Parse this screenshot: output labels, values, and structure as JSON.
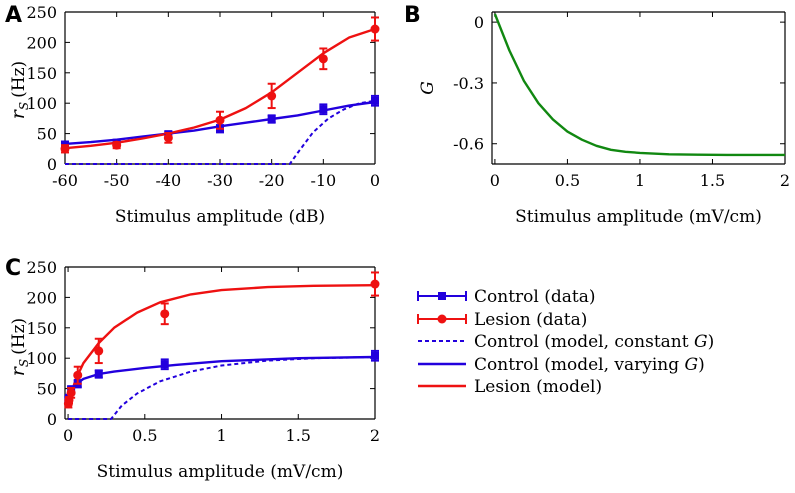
{
  "panel_labels": {
    "a": "A",
    "b": "B",
    "c": "C"
  },
  "colors": {
    "control": "#2200dd",
    "lesion": "#ee1111",
    "gain": "#118811"
  },
  "chart_data": [
    {
      "type": "line",
      "panel": "A",
      "xlabel": "Stimulus amplitude (dB)",
      "ylabel_main": "r",
      "ylabel_sub": "S",
      "ylabel_unit": "(Hz)",
      "xlim": [
        -60,
        0
      ],
      "ylim": [
        0,
        250
      ],
      "xticks": [
        -60,
        -50,
        -40,
        -30,
        -20,
        -10,
        0
      ],
      "xtick_labels": [
        "-60",
        "-50",
        "-40",
        "-30",
        "-20",
        "-10",
        "0"
      ],
      "yticks": [
        0,
        50,
        100,
        150,
        200,
        250
      ],
      "ytick_labels": [
        "0",
        "50",
        "100",
        "150",
        "200",
        "250"
      ],
      "data_series": [
        {
          "name": "Control (data)",
          "marker": "square",
          "color": "#2200dd",
          "x": [
            -60,
            -50,
            -40,
            -30,
            -20,
            -10,
            0
          ],
          "y": [
            32,
            35,
            48,
            58,
            74,
            90,
            104
          ],
          "err": [
            5,
            4,
            6,
            6,
            6,
            8,
            8
          ]
        },
        {
          "name": "Lesion (data)",
          "marker": "circle",
          "color": "#ee1111",
          "x": [
            -60,
            -50,
            -40,
            -30,
            -20,
            -10,
            0
          ],
          "y": [
            25,
            31,
            43,
            72,
            112,
            173,
            222
          ],
          "err": [
            6,
            5,
            8,
            14,
            20,
            17,
            19
          ]
        }
      ],
      "model_series": [
        {
          "name": "Control (model, constant G)",
          "style": "dashed",
          "color": "#2200dd",
          "x": [
            -60,
            -40,
            -20,
            -16.5,
            -15,
            -12,
            -9,
            -6,
            -3,
            0
          ],
          "y": [
            0,
            0,
            0,
            0,
            18,
            52,
            75,
            90,
            100,
            104
          ]
        },
        {
          "name": "Control (model, varying G)",
          "style": "solid",
          "color": "#2200dd",
          "x": [
            -60,
            -55,
            -50,
            -45,
            -40,
            -35,
            -30,
            -25,
            -20,
            -15,
            -10,
            -5,
            0
          ],
          "y": [
            33,
            36,
            40,
            45,
            50,
            55,
            62,
            68,
            74,
            80,
            88,
            96,
            102
          ]
        },
        {
          "name": "Lesion (model)",
          "style": "solid",
          "color": "#ee1111",
          "x": [
            -60,
            -55,
            -50,
            -45,
            -40,
            -35,
            -30,
            -25,
            -20,
            -15,
            -10,
            -5,
            0
          ],
          "y": [
            26,
            30,
            35,
            42,
            50,
            60,
            73,
            92,
            118,
            150,
            182,
            208,
            222
          ]
        }
      ]
    },
    {
      "type": "line",
      "panel": "B",
      "xlabel": "Stimulus amplitude (mV/cm)",
      "ylabel": "G",
      "xlim": [
        -0.02,
        2
      ],
      "ylim": [
        -0.7,
        0.05
      ],
      "xticks": [
        0,
        0.5,
        1,
        1.5,
        2
      ],
      "xtick_labels": [
        "0",
        "0.5",
        "1",
        "1.5",
        "2"
      ],
      "yticks": [
        0,
        -0.3,
        -0.6
      ],
      "ytick_labels": [
        "0",
        "-0.3",
        "-0.6"
      ],
      "model_series": [
        {
          "name": "G",
          "style": "solid",
          "color": "#118811",
          "x": [
            0,
            0.1,
            0.2,
            0.3,
            0.4,
            0.5,
            0.6,
            0.7,
            0.8,
            0.9,
            1.0,
            1.2,
            1.4,
            1.6,
            1.8,
            2.0
          ],
          "y": [
            0.04,
            -0.14,
            -0.29,
            -0.4,
            -0.48,
            -0.54,
            -0.58,
            -0.61,
            -0.63,
            -0.64,
            -0.645,
            -0.652,
            -0.654,
            -0.655,
            -0.655,
            -0.655
          ]
        }
      ]
    },
    {
      "type": "line",
      "panel": "C",
      "xlabel": "Stimulus amplitude (mV/cm)",
      "ylabel_main": "r",
      "ylabel_sub": "S",
      "ylabel_unit": "(Hz)",
      "xlim": [
        -0.02,
        2
      ],
      "ylim": [
        0,
        250
      ],
      "xticks": [
        0,
        0.5,
        1,
        1.5,
        2
      ],
      "xtick_labels": [
        "0",
        "0.5",
        "1",
        "1.5",
        "2"
      ],
      "yticks": [
        0,
        50,
        100,
        150,
        200,
        250
      ],
      "ytick_labels": [
        "0",
        "50",
        "100",
        "150",
        "200",
        "250"
      ],
      "data_series": [
        {
          "name": "Control (data)",
          "marker": "square",
          "color": "#2200dd",
          "x": [
            0.002,
            0.006,
            0.02,
            0.063,
            0.2,
            0.63,
            2.0
          ],
          "y": [
            32,
            35,
            48,
            58,
            74,
            90,
            104
          ],
          "err": [
            5,
            4,
            6,
            6,
            6,
            8,
            8
          ]
        },
        {
          "name": "Lesion (data)",
          "marker": "circle",
          "color": "#ee1111",
          "x": [
            0.002,
            0.006,
            0.02,
            0.063,
            0.2,
            0.63,
            2.0
          ],
          "y": [
            25,
            31,
            43,
            72,
            112,
            173,
            222
          ],
          "err": [
            6,
            5,
            8,
            14,
            20,
            17,
            19
          ]
        }
      ],
      "model_series": [
        {
          "name": "Control (model, constant G)",
          "style": "dashed",
          "color": "#2200dd",
          "x": [
            0,
            0.2,
            0.28,
            0.35,
            0.45,
            0.6,
            0.8,
            1.0,
            1.3,
            1.6,
            2.0
          ],
          "y": [
            0,
            0,
            0,
            22,
            42,
            62,
            78,
            88,
            96,
            100,
            102
          ]
        },
        {
          "name": "Control (model, varying G)",
          "style": "solid",
          "color": "#2200dd",
          "x": [
            0,
            0.02,
            0.05,
            0.1,
            0.2,
            0.3,
            0.5,
            0.7,
            1.0,
            1.5,
            2.0
          ],
          "y": [
            33,
            45,
            57,
            66,
            74,
            78,
            84,
            89,
            95,
            100,
            102
          ]
        },
        {
          "name": "Lesion (model)",
          "style": "solid",
          "color": "#ee1111",
          "x": [
            0,
            0.05,
            0.1,
            0.2,
            0.3,
            0.45,
            0.6,
            0.8,
            1.0,
            1.3,
            1.6,
            2.0
          ],
          "y": [
            26,
            65,
            92,
            125,
            150,
            175,
            192,
            205,
            212,
            217,
            219,
            220
          ]
        }
      ]
    }
  ],
  "legend": {
    "items": [
      {
        "kind": "data-square",
        "color": "#2200dd",
        "label": "Control (data)",
        "label_suffix": ""
      },
      {
        "kind": "data-circle",
        "color": "#ee1111",
        "label": "Lesion (data)",
        "label_suffix": ""
      },
      {
        "kind": "dashed",
        "color": "#2200dd",
        "label": "Control (model, constant ",
        "label_suffix": "G)"
      },
      {
        "kind": "solid",
        "color": "#2200dd",
        "label": "Control (model, varying ",
        "label_suffix": "G)"
      },
      {
        "kind": "solid",
        "color": "#ee1111",
        "label": "Lesion (model)",
        "label_suffix": ""
      }
    ]
  }
}
